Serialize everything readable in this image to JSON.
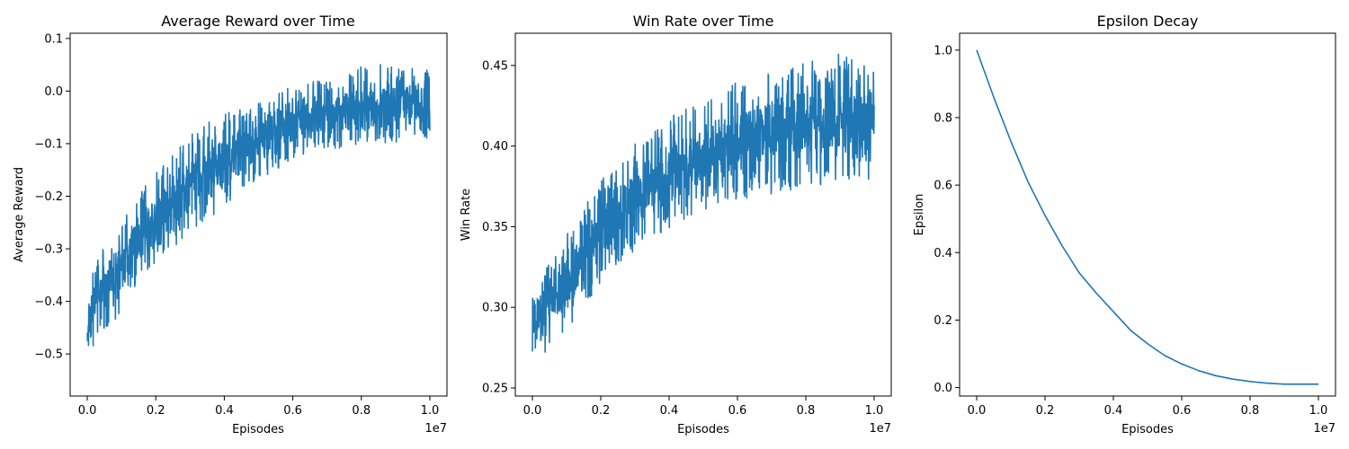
{
  "chart_data": [
    {
      "id": "reward",
      "type": "line",
      "title": "Average Reward over Time",
      "xlabel": "Episodes",
      "ylabel": "Average Reward",
      "x_offset_text": "1e7",
      "xlim": [
        -0.05,
        1.05
      ],
      "ylim": [
        -0.58,
        0.11
      ],
      "x_ticks": [
        0.0,
        0.2,
        0.4,
        0.6,
        0.8,
        1.0
      ],
      "x_tick_labels": [
        "0.0",
        "0.2",
        "0.4",
        "0.6",
        "0.8",
        "1.0"
      ],
      "y_ticks": [
        -0.5,
        -0.4,
        -0.3,
        -0.2,
        -0.1,
        0.0,
        0.1
      ],
      "y_tick_labels": [
        "−0.5",
        "−0.4",
        "−0.3",
        "−0.2",
        "−0.1",
        "0.0",
        "0.1"
      ],
      "grid": false,
      "series": [
        {
          "color": "#1f77b4",
          "x": [
            0.0,
            0.005,
            0.01,
            0.02,
            0.05,
            0.1,
            0.15,
            0.2,
            0.25,
            0.3,
            0.35,
            0.4,
            0.45,
            0.5,
            0.55,
            0.6,
            0.65,
            0.7,
            0.75,
            0.8,
            0.85,
            0.9,
            0.95,
            1.0
          ],
          "lower": [
            -0.56,
            -0.52,
            -0.5,
            -0.48,
            -0.46,
            -0.42,
            -0.36,
            -0.33,
            -0.3,
            -0.27,
            -0.25,
            -0.22,
            -0.19,
            -0.17,
            -0.15,
            -0.13,
            -0.12,
            -0.11,
            -0.11,
            -0.1,
            -0.1,
            -0.1,
            -0.09,
            -0.09
          ],
          "upper": [
            -0.38,
            -0.36,
            -0.34,
            -0.32,
            -0.29,
            -0.25,
            -0.2,
            -0.15,
            -0.12,
            -0.08,
            -0.06,
            -0.04,
            -0.03,
            -0.02,
            0.0,
            0.01,
            0.02,
            0.03,
            0.04,
            0.05,
            0.05,
            0.06,
            0.05,
            0.04
          ]
        }
      ]
    },
    {
      "id": "winrate",
      "type": "line",
      "title": "Win Rate over Time",
      "xlabel": "Episodes",
      "ylabel": "Win Rate",
      "x_offset_text": "1e7",
      "xlim": [
        -0.05,
        1.05
      ],
      "ylim": [
        0.245,
        0.47
      ],
      "x_ticks": [
        0.0,
        0.2,
        0.4,
        0.6,
        0.8,
        1.0
      ],
      "x_tick_labels": [
        "0.0",
        "0.2",
        "0.4",
        "0.6",
        "0.8",
        "1.0"
      ],
      "y_ticks": [
        0.25,
        0.3,
        0.35,
        0.4,
        0.45
      ],
      "y_tick_labels": [
        "0.25",
        "0.30",
        "0.35",
        "0.40",
        "0.45"
      ],
      "grid": false,
      "series": [
        {
          "color": "#1f77b4",
          "x": [
            0.0,
            0.005,
            0.01,
            0.02,
            0.05,
            0.1,
            0.15,
            0.2,
            0.25,
            0.3,
            0.35,
            0.4,
            0.45,
            0.5,
            0.55,
            0.6,
            0.65,
            0.7,
            0.75,
            0.8,
            0.85,
            0.9,
            0.95,
            1.0
          ],
          "lower": [
            0.255,
            0.258,
            0.262,
            0.266,
            0.272,
            0.285,
            0.3,
            0.315,
            0.325,
            0.335,
            0.342,
            0.348,
            0.355,
            0.36,
            0.363,
            0.366,
            0.368,
            0.37,
            0.372,
            0.373,
            0.374,
            0.375,
            0.376,
            0.378
          ],
          "upper": [
            0.312,
            0.315,
            0.318,
            0.322,
            0.33,
            0.345,
            0.362,
            0.378,
            0.392,
            0.403,
            0.41,
            0.418,
            0.425,
            0.43,
            0.435,
            0.44,
            0.444,
            0.447,
            0.45,
            0.452,
            0.455,
            0.458,
            0.455,
            0.45
          ]
        }
      ]
    },
    {
      "id": "epsilon",
      "type": "line",
      "title": "Epsilon Decay",
      "xlabel": "Episodes",
      "ylabel": "Epsilon",
      "x_offset_text": "1e7",
      "xlim": [
        -0.05,
        1.05
      ],
      "ylim": [
        -0.025,
        1.05
      ],
      "x_ticks": [
        0.0,
        0.2,
        0.4,
        0.6,
        0.8,
        1.0
      ],
      "x_tick_labels": [
        "0.0",
        "0.2",
        "0.4",
        "0.6",
        "0.8",
        "1.0"
      ],
      "y_ticks": [
        0.0,
        0.2,
        0.4,
        0.6,
        0.8,
        1.0
      ],
      "y_tick_labels": [
        "0.0",
        "0.2",
        "0.4",
        "0.6",
        "0.8",
        "1.0"
      ],
      "grid": false,
      "series": [
        {
          "color": "#1f77b4",
          "x": [
            0.0,
            0.05,
            0.1,
            0.15,
            0.2,
            0.25,
            0.3,
            0.35,
            0.4,
            0.45,
            0.5,
            0.55,
            0.6,
            0.65,
            0.7,
            0.75,
            0.8,
            0.85,
            0.9,
            0.95,
            1.0
          ],
          "y": [
            1.0,
            0.86,
            0.73,
            0.61,
            0.51,
            0.42,
            0.34,
            0.28,
            0.225,
            0.17,
            0.13,
            0.095,
            0.07,
            0.05,
            0.035,
            0.025,
            0.018,
            0.013,
            0.01,
            0.01,
            0.01
          ]
        }
      ]
    }
  ]
}
